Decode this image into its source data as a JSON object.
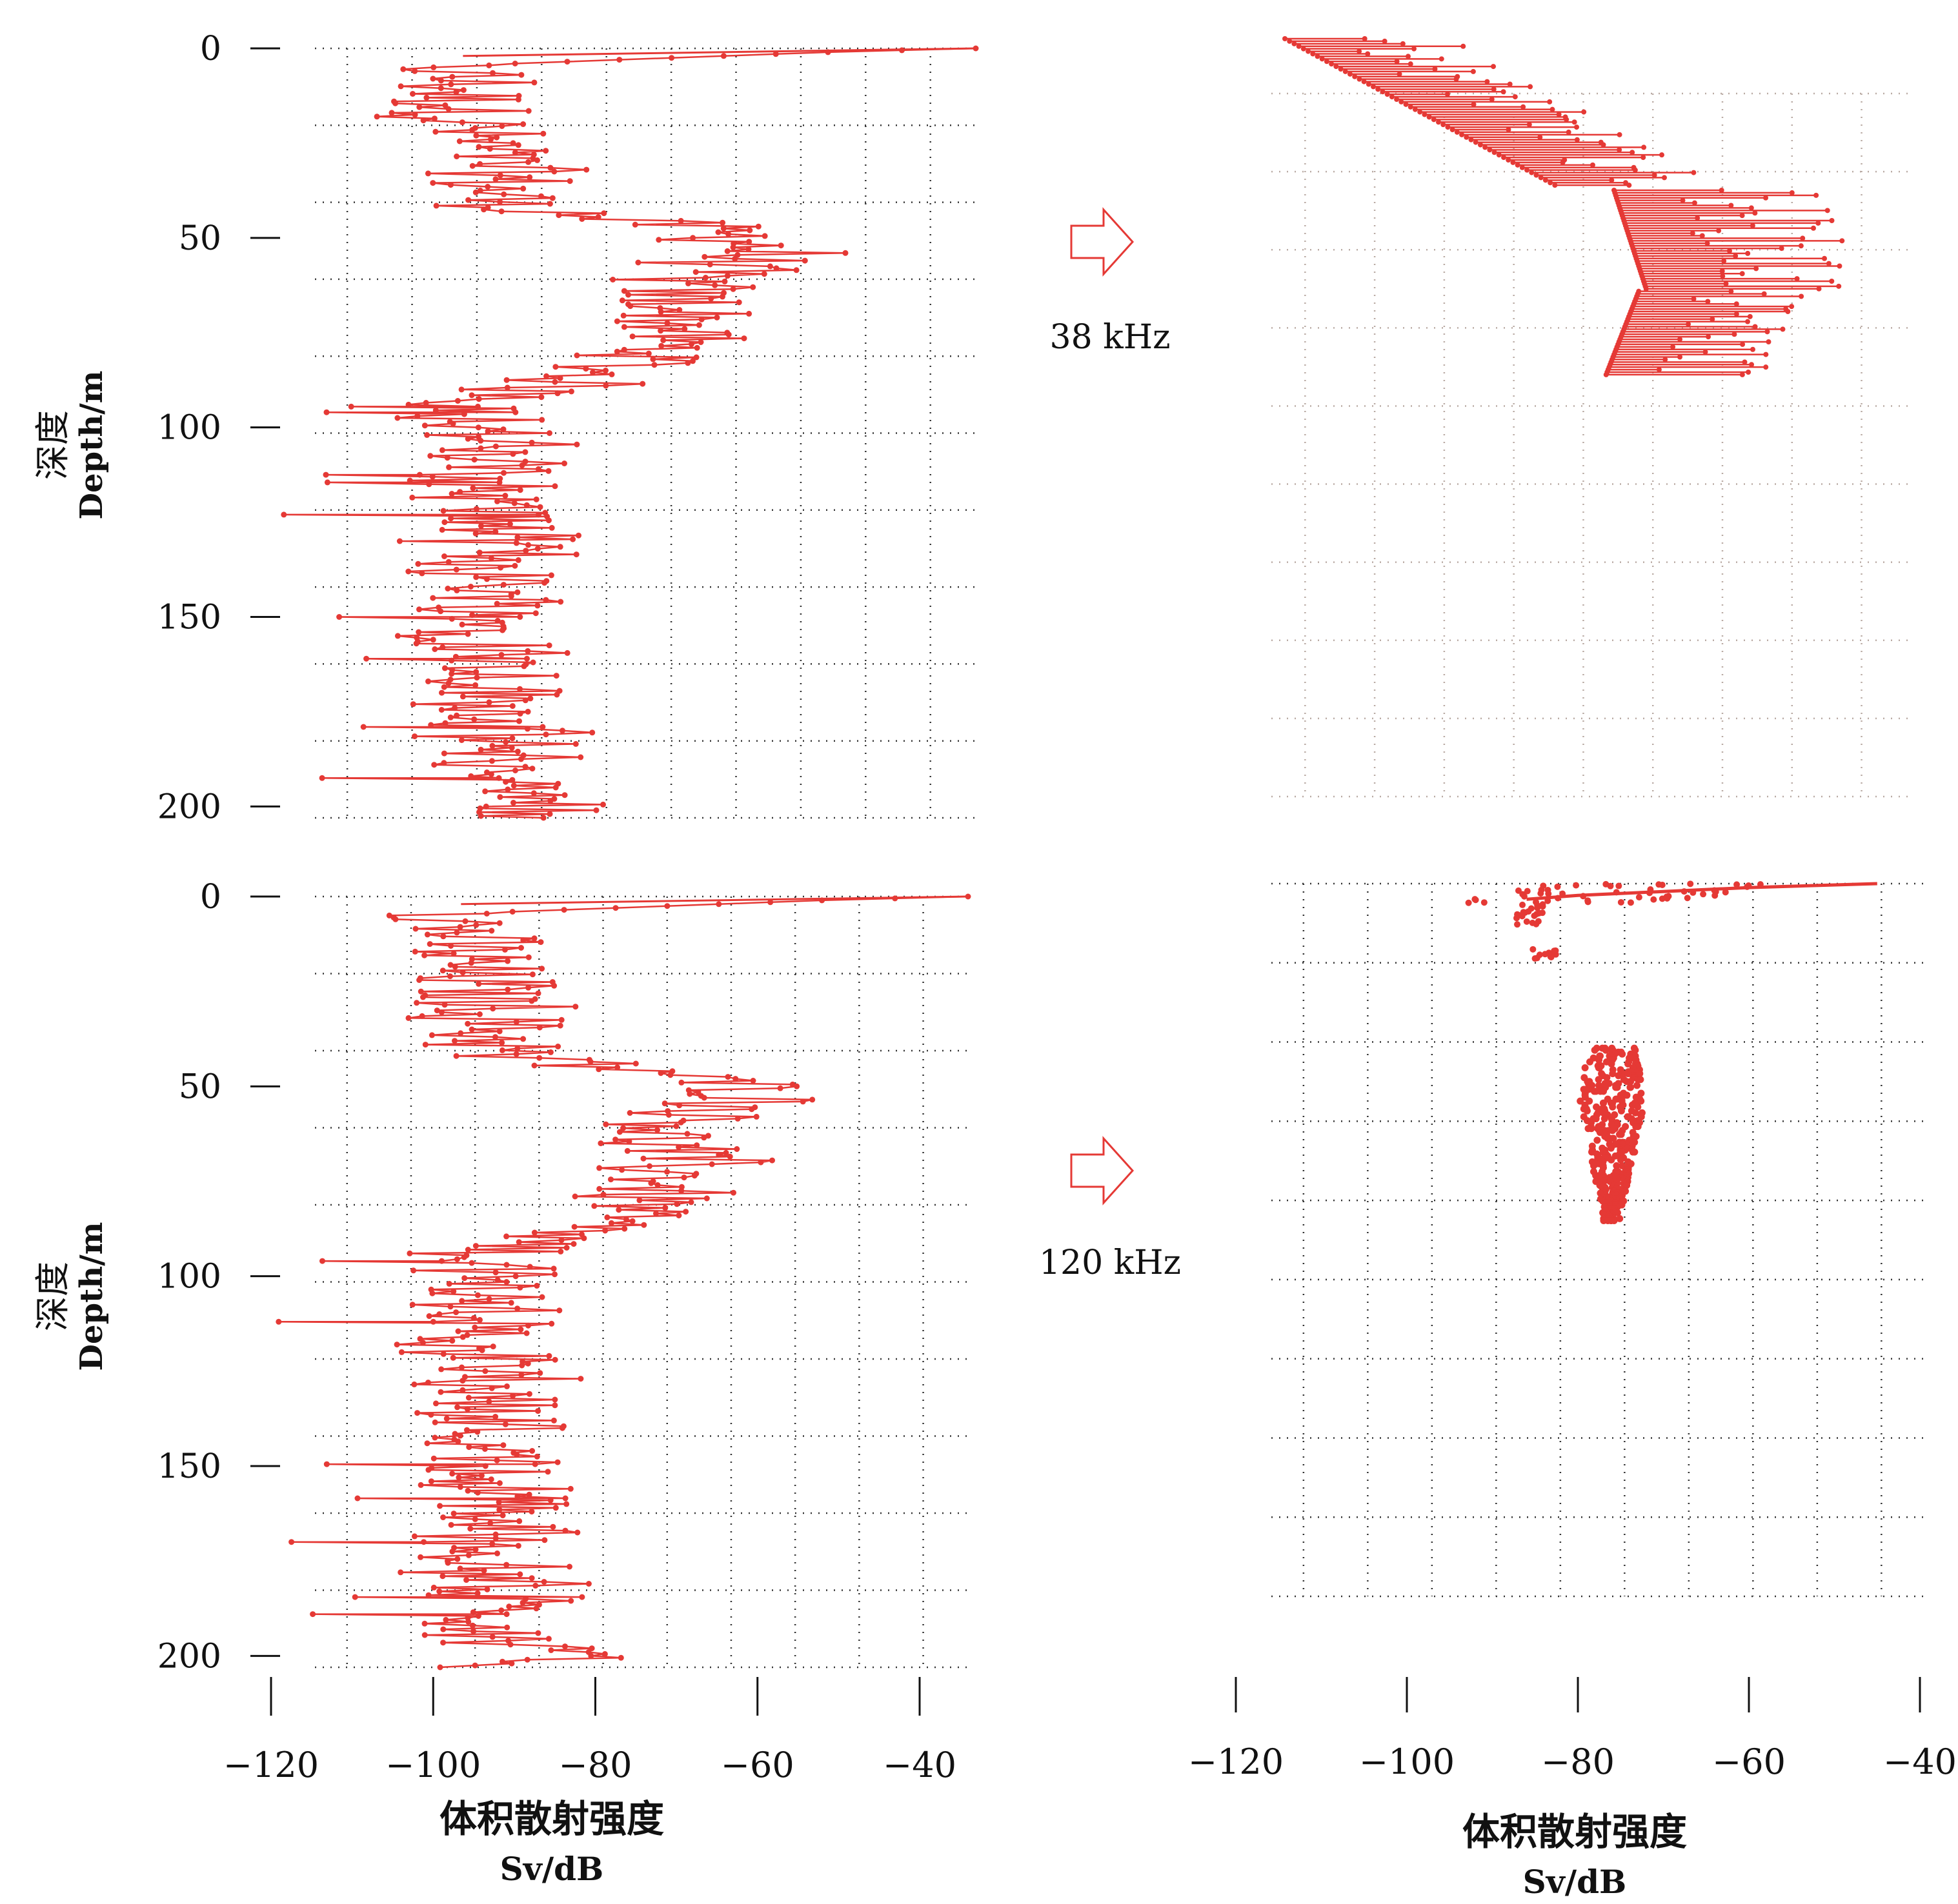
{
  "figure": {
    "y_axis_label_cn": "深度",
    "y_axis_label_en": "Depth/m",
    "x_axis_label_cn": "体积散射强度",
    "x_axis_label_en": "Sv/dB",
    "freq_top": "38 kHz",
    "freq_bottom": "120 kHz",
    "line_color": "#e53935"
  },
  "chart_data": [
    {
      "id": "top-left",
      "type": "line",
      "ylabel": "深度 Depth/m",
      "yticks": [
        "0",
        "50",
        "100",
        "150",
        "200"
      ],
      "ylim": [
        0,
        203
      ],
      "xlim": [
        -112,
        -33
      ],
      "grid": true,
      "profile": [
        [
          0,
          -33
        ],
        [
          1,
          -50
        ],
        [
          2,
          -62
        ],
        [
          3,
          -74
        ],
        [
          4,
          -86
        ],
        [
          5,
          -92
        ],
        [
          7,
          -93
        ],
        [
          10,
          -92
        ],
        [
          14,
          -92
        ],
        [
          18,
          -92
        ],
        [
          22,
          -91
        ],
        [
          26,
          -90
        ],
        [
          30,
          -89
        ],
        [
          34,
          -88
        ],
        [
          38,
          -88
        ],
        [
          42,
          -87
        ],
        [
          44,
          -78
        ],
        [
          46,
          -70
        ],
        [
          48,
          -64
        ],
        [
          50,
          -60
        ],
        [
          52,
          -58
        ],
        [
          54,
          -58
        ],
        [
          56,
          -60
        ],
        [
          58,
          -63
        ],
        [
          60,
          -66
        ],
        [
          62,
          -68
        ],
        [
          65,
          -68
        ],
        [
          68,
          -67
        ],
        [
          72,
          -67
        ],
        [
          76,
          -68
        ],
        [
          80,
          -70
        ],
        [
          84,
          -74
        ],
        [
          88,
          -80
        ],
        [
          92,
          -86
        ],
        [
          96,
          -90
        ],
        [
          100,
          -90
        ],
        [
          110,
          -89
        ],
        [
          120,
          -89
        ],
        [
          130,
          -88
        ],
        [
          140,
          -88
        ],
        [
          150,
          -89
        ],
        [
          160,
          -88
        ],
        [
          170,
          -88
        ],
        [
          180,
          -88
        ],
        [
          190,
          -88
        ],
        [
          196,
          -86
        ],
        [
          200,
          -82
        ],
        [
          203,
          -85
        ]
      ]
    },
    {
      "id": "top-right",
      "type": "line",
      "series": [
        {
          "name": "38 kHz",
          "values": []
        }
      ],
      "xlim": [
        -120,
        -40
      ],
      "grid": true,
      "clusters": [
        {
          "d_start": 0,
          "d_end": 35,
          "x_start": -116,
          "x_end": -83,
          "x_width": 20
        },
        {
          "d_start": 36,
          "d_end": 60,
          "x_start": -76,
          "x_end": -72,
          "x_width": 26
        },
        {
          "d_start": 60,
          "d_end": 80,
          "x_start": -73,
          "x_end": -77,
          "x_width": 20
        }
      ]
    },
    {
      "id": "bottom-left",
      "type": "line",
      "ylabel": "深度 Depth/m",
      "yticks": [
        "0",
        "50",
        "100",
        "150",
        "200"
      ],
      "ylim": [
        0,
        203
      ],
      "xlim": [
        -112,
        -33
      ],
      "xticks": [
        "−120",
        "−100",
        "−80",
        "−60",
        "−40"
      ],
      "xtick_values": [
        -120,
        -100,
        -80,
        -60,
        -40
      ],
      "xlabel": "体积散射强度 Sv/dB",
      "grid": true,
      "profile": [
        [
          0,
          -33
        ],
        [
          1,
          -50
        ],
        [
          2,
          -62
        ],
        [
          3,
          -74
        ],
        [
          4,
          -86
        ],
        [
          5,
          -92
        ],
        [
          7,
          -93
        ],
        [
          10,
          -92
        ],
        [
          14,
          -92
        ],
        [
          18,
          -92
        ],
        [
          22,
          -91
        ],
        [
          26,
          -90
        ],
        [
          30,
          -89
        ],
        [
          34,
          -88
        ],
        [
          38,
          -88
        ],
        [
          42,
          -87
        ],
        [
          44,
          -78
        ],
        [
          46,
          -70
        ],
        [
          48,
          -64
        ],
        [
          50,
          -60
        ],
        [
          52,
          -58
        ],
        [
          54,
          -58
        ],
        [
          56,
          -60
        ],
        [
          58,
          -63
        ],
        [
          60,
          -66
        ],
        [
          62,
          -68
        ],
        [
          65,
          -68
        ],
        [
          68,
          -67
        ],
        [
          72,
          -67
        ],
        [
          76,
          -68
        ],
        [
          80,
          -70
        ],
        [
          84,
          -74
        ],
        [
          88,
          -80
        ],
        [
          92,
          -86
        ],
        [
          96,
          -90
        ],
        [
          100,
          -90
        ],
        [
          110,
          -89
        ],
        [
          120,
          -89
        ],
        [
          130,
          -88
        ],
        [
          140,
          -88
        ],
        [
          150,
          -89
        ],
        [
          160,
          -88
        ],
        [
          170,
          -88
        ],
        [
          180,
          -88
        ],
        [
          190,
          -88
        ],
        [
          196,
          -86
        ],
        [
          200,
          -82
        ],
        [
          203,
          -85
        ]
      ]
    },
    {
      "id": "bottom-right",
      "type": "scatter",
      "series": [
        {
          "name": "120 kHz",
          "values": []
        }
      ],
      "xticks": [
        "−120",
        "−100",
        "−80",
        "−60",
        "−40"
      ],
      "xtick_values": [
        -120,
        -100,
        -80,
        -60,
        -40
      ],
      "xlim": [
        -120,
        -40
      ],
      "xlabel": "体积散射强度 Sv/dB",
      "grid": true,
      "surface_band": [
        [
          0,
          -45
        ],
        [
          1,
          -60
        ],
        [
          2,
          -70
        ],
        [
          3,
          -80
        ],
        [
          4,
          -86
        ]
      ],
      "blobs": [
        {
          "d": 6,
          "x": -85
        },
        {
          "d": 9,
          "x": -86
        },
        {
          "d": 18,
          "x": -84
        }
      ],
      "patch": {
        "d_start": 42,
        "d_end": 86,
        "x_center": -74,
        "x_width": 8
      }
    }
  ]
}
